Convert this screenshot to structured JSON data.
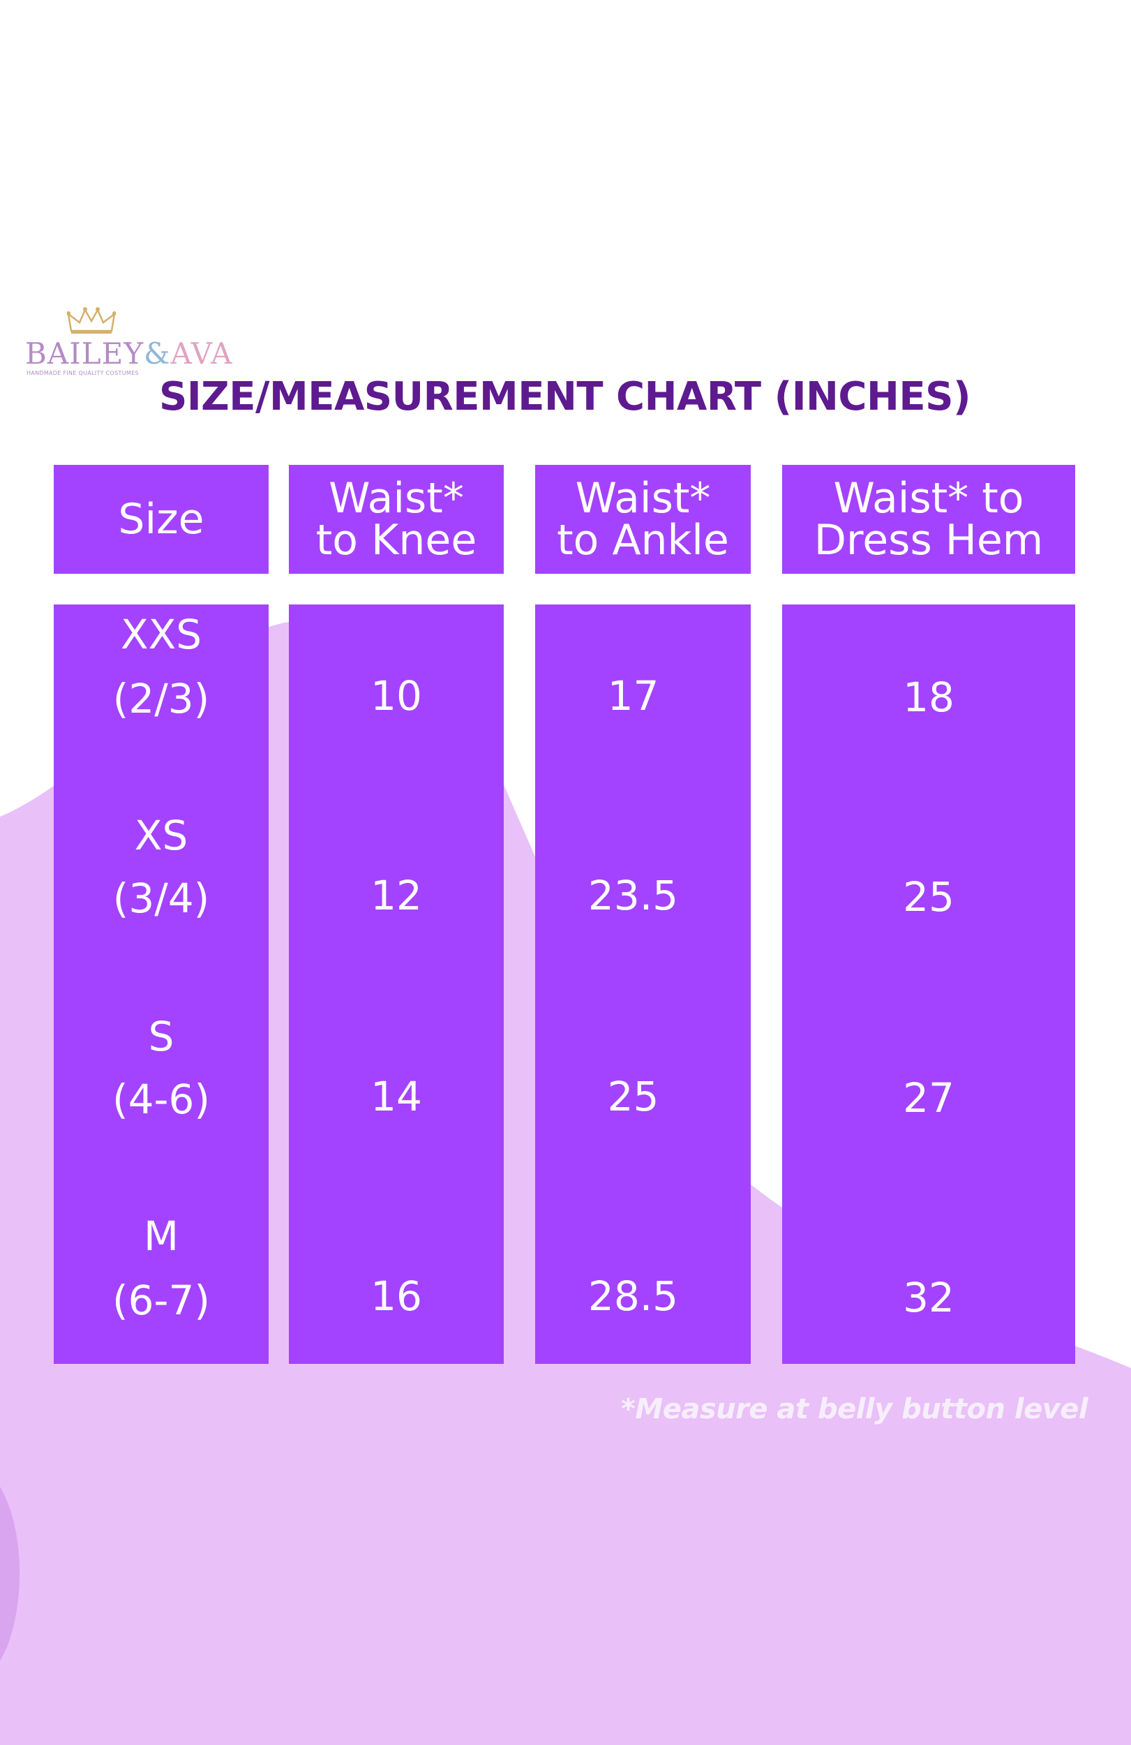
{
  "brand": {
    "name_part1": "BAILEY",
    "name_part2": "&",
    "name_part3": "AVA",
    "tagline": "HANDMADE FINE QUALITY COSTUMES"
  },
  "title": "SIZE/MEASUREMENT CHART (INCHES)",
  "colors": {
    "cell_bg": "#a343ff",
    "title": "#5e1a8f",
    "blob": "#e9c0f8"
  },
  "table": {
    "headers": [
      {
        "line1": "Size",
        "line2": ""
      },
      {
        "line1": "Waist*",
        "line2": "to Knee"
      },
      {
        "line1": "Waist*",
        "line2": "to Ankle"
      },
      {
        "line1": "Waist* to",
        "line2": "Dress Hem"
      }
    ],
    "rows": [
      {
        "size": "XXS",
        "age": "(2/3)",
        "knee": "10",
        "ankle": "17",
        "hem": "18"
      },
      {
        "size": "XS",
        "age": "(3/4)",
        "knee": "12",
        "ankle": "23.5",
        "hem": "25"
      },
      {
        "size": "S",
        "age": "(4-6)",
        "knee": "14",
        "ankle": "25",
        "hem": "27"
      },
      {
        "size": "M",
        "age": "(6-7)",
        "knee": "16",
        "ankle": "28.5",
        "hem": "32"
      }
    ]
  },
  "footnote": "*Measure at belly button level"
}
